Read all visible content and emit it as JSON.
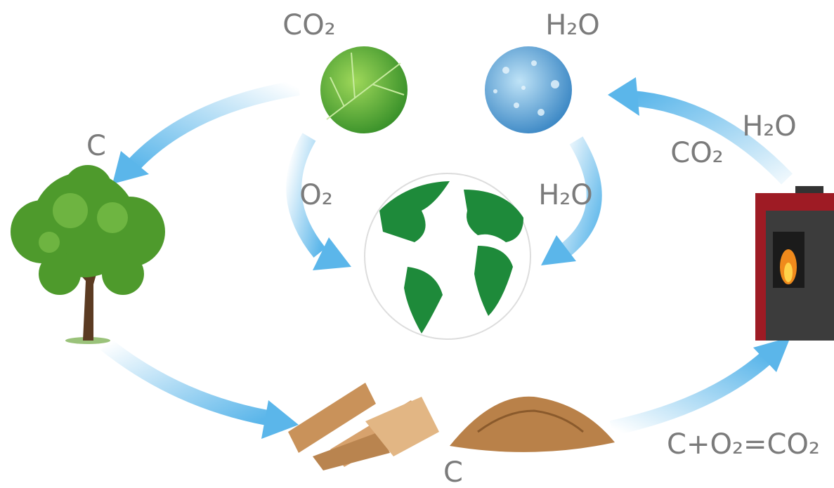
{
  "labels": {
    "leaf_co2": "CO₂",
    "water_h2o": "H₂O",
    "tree_c": "C",
    "globe_o2": "O₂",
    "globe_h2o": "H₂O",
    "stove_co2": "CO₂",
    "stove_h2o": "H₂O",
    "combustion": "C+O₂=CO₂",
    "fuel_c": "C"
  }
}
